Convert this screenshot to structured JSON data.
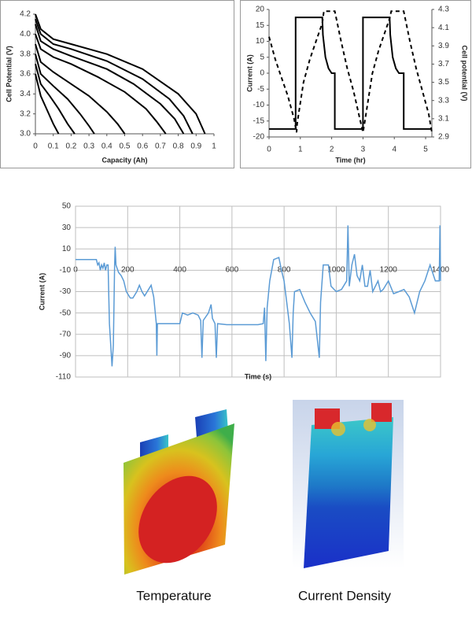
{
  "chart_data": [
    {
      "type": "line",
      "xlabel": "Capacity (Ah)",
      "ylabel": "Cell Potential (V)",
      "xlim": [
        0,
        1
      ],
      "xticks": [
        0,
        0.1,
        0.2,
        0.3,
        0.4,
        0.5,
        0.6,
        0.7,
        0.8,
        0.9,
        1
      ],
      "ylim": [
        3,
        4.2
      ],
      "yticks": [
        {
          "value": 3,
          "label": "3.0"
        },
        {
          "value": 3.2,
          "label": "3.2"
        },
        {
          "value": 3.4,
          "label": "3.4"
        },
        {
          "value": 3.6,
          "label": "3.6"
        },
        {
          "value": 3.8,
          "label": "3.8"
        },
        {
          "value": 4,
          "label": "4.0"
        },
        {
          "value": 4.2,
          "label": "4.2"
        }
      ],
      "grid": false,
      "series": [
        {
          "color": "#000000",
          "x": [
            0,
            0.03,
            0.1,
            0.2,
            0.4,
            0.6,
            0.8,
            0.9,
            0.95
          ],
          "values": [
            4.2,
            4.05,
            3.95,
            3.9,
            3.8,
            3.65,
            3.4,
            3.2,
            3.0
          ]
        },
        {
          "color": "#000000",
          "x": [
            0,
            0.03,
            0.1,
            0.2,
            0.4,
            0.6,
            0.75,
            0.83,
            0.88
          ],
          "values": [
            4.15,
            4.0,
            3.9,
            3.85,
            3.73,
            3.55,
            3.35,
            3.18,
            3.0
          ]
        },
        {
          "color": "#000000",
          "x": [
            0,
            0.03,
            0.1,
            0.2,
            0.4,
            0.55,
            0.7,
            0.78,
            0.83
          ],
          "values": [
            4.1,
            3.93,
            3.85,
            3.78,
            3.65,
            3.5,
            3.3,
            3.15,
            3.0
          ]
        },
        {
          "color": "#000000",
          "x": [
            0,
            0.03,
            0.1,
            0.2,
            0.35,
            0.5,
            0.62,
            0.68,
            0.73
          ],
          "values": [
            4.0,
            3.85,
            3.77,
            3.7,
            3.57,
            3.42,
            3.25,
            3.12,
            3.0
          ]
        },
        {
          "color": "#000000",
          "x": [
            0,
            0.03,
            0.1,
            0.2,
            0.3,
            0.4,
            0.46,
            0.5
          ],
          "values": [
            3.9,
            3.72,
            3.62,
            3.5,
            3.38,
            3.22,
            3.1,
            3.0
          ]
        },
        {
          "color": "#000000",
          "x": [
            0,
            0.03,
            0.1,
            0.18,
            0.25,
            0.3,
            0.33
          ],
          "values": [
            3.8,
            3.6,
            3.48,
            3.35,
            3.2,
            3.08,
            3.0
          ]
        },
        {
          "color": "#000000",
          "x": [
            0,
            0.03,
            0.08,
            0.13,
            0.18,
            0.22
          ],
          "values": [
            3.7,
            3.5,
            3.38,
            3.25,
            3.1,
            3.0
          ]
        },
        {
          "color": "#000000",
          "x": [
            0,
            0.03,
            0.07,
            0.1,
            0.13
          ],
          "values": [
            3.6,
            3.38,
            3.22,
            3.1,
            3.0
          ]
        }
      ]
    },
    {
      "type": "line",
      "xlabel": "Time (hr)",
      "ylabel": "Current (A)",
      "y2label": "Cell potential (V)",
      "xlim": [
        0,
        5.2
      ],
      "xticks": [
        0,
        1,
        2,
        3,
        4,
        5
      ],
      "ylim": [
        -20,
        20
      ],
      "yticks": [
        -20,
        -15,
        -10,
        -5,
        0,
        5,
        10,
        15,
        20
      ],
      "y2lim": [
        2.9,
        4.3
      ],
      "y2ticks": [
        2.9,
        3.1,
        3.3,
        3.5,
        3.7,
        3.9,
        4.1,
        4.3
      ],
      "grid": false,
      "series": [
        {
          "color": "#000000",
          "dash": false,
          "x": [
            0,
            0.85,
            0.85,
            1.7,
            1.72,
            1.8,
            1.9,
            2.0,
            2.1,
            2.1,
            3.0,
            3.0,
            3.85,
            3.87,
            3.95,
            4.05,
            4.15,
            4.3,
            4.3,
            5.2
          ],
          "values": [
            -17.5,
            -17.5,
            17.5,
            17.5,
            12,
            5,
            1.5,
            0,
            0,
            -17.5,
            -17.5,
            17.5,
            17.5,
            12,
            5,
            1.5,
            0,
            0,
            -17.5,
            -17.5
          ]
        },
        {
          "color": "#000000",
          "dash": true,
          "axis": "y2",
          "x": [
            0,
            0.2,
            0.4,
            0.6,
            0.8,
            0.88,
            0.9,
            1.1,
            1.3,
            1.5,
            1.7,
            1.75,
            2.1,
            2.3,
            2.5,
            2.7,
            2.9,
            3.0,
            3.05,
            3.3,
            3.5,
            3.7,
            3.85,
            3.9,
            4.3,
            4.5,
            4.7,
            4.9,
            5.1,
            5.2
          ],
          "values": [
            4.0,
            3.75,
            3.55,
            3.35,
            3.1,
            2.95,
            3.05,
            3.5,
            3.75,
            3.95,
            4.15,
            4.28,
            4.28,
            3.95,
            3.65,
            3.4,
            3.1,
            2.95,
            3.05,
            3.6,
            3.85,
            4.05,
            4.2,
            4.28,
            4.28,
            3.95,
            3.65,
            3.4,
            3.15,
            2.95
          ]
        }
      ]
    },
    {
      "type": "line",
      "xlabel": "Time (s)",
      "ylabel": "Current (A)",
      "xlim": [
        0,
        1400
      ],
      "xticks": [
        0,
        200,
        400,
        600,
        800,
        1000,
        1200,
        1400
      ],
      "ylim": [
        -110,
        50
      ],
      "yticks": [
        -110,
        -90,
        -70,
        -50,
        -30,
        -10,
        10,
        30,
        50
      ],
      "grid": true,
      "series": [
        {
          "color": "#5b9bd5",
          "x": [
            0,
            80,
            85,
            90,
            95,
            100,
            105,
            110,
            115,
            120,
            125,
            130,
            140,
            145,
            150,
            152,
            155,
            165,
            175,
            185,
            195,
            210,
            220,
            235,
            245,
            255,
            265,
            280,
            290,
            300,
            310,
            312,
            314,
            330,
            370,
            400,
            410,
            430,
            450,
            470,
            480,
            485,
            490,
            510,
            520,
            525,
            535,
            540,
            545,
            580,
            650,
            700,
            720,
            725,
            730,
            735,
            745,
            760,
            780,
            790,
            800,
            810,
            820,
            830,
            835,
            840,
            860,
            880,
            900,
            920,
            935,
            940,
            950,
            970,
            980,
            1000,
            1020,
            1040,
            1045,
            1050,
            1060,
            1070,
            1080,
            1090,
            1100,
            1110,
            1120,
            1130,
            1140,
            1160,
            1170,
            1180,
            1200,
            1220,
            1240,
            1260,
            1280,
            1300,
            1320,
            1340,
            1360,
            1380,
            1395,
            1398,
            1400
          ],
          "values": [
            0,
            0,
            -5,
            -3,
            -10,
            -5,
            -8,
            -3,
            -10,
            -5,
            -5,
            -60,
            -100,
            -80,
            -5,
            12,
            -5,
            -12,
            -15,
            -20,
            -30,
            -36,
            -36,
            -30,
            -24,
            -30,
            -34,
            -28,
            -24,
            -35,
            -60,
            -90,
            -60,
            -60,
            -60,
            -60,
            -50,
            -52,
            -50,
            -52,
            -57,
            -92,
            -57,
            -50,
            -42,
            -55,
            -60,
            -92,
            -60,
            -61,
            -61,
            -61,
            -60,
            -45,
            -95,
            -45,
            -20,
            0,
            2,
            -10,
            -20,
            -40,
            -60,
            -92,
            -50,
            -30,
            -28,
            -40,
            -50,
            -58,
            -92,
            -40,
            -5,
            -5,
            -25,
            -30,
            -28,
            -20,
            32,
            -25,
            -5,
            5,
            -15,
            -20,
            -5,
            -25,
            -25,
            -10,
            -30,
            -20,
            -30,
            -28,
            -20,
            -32,
            -30,
            -28,
            -35,
            -50,
            -30,
            -20,
            -5,
            -20,
            -20,
            32,
            -20
          ]
        }
      ]
    }
  ],
  "figures": {
    "captions": [
      "Temperature",
      "Current Density"
    ]
  }
}
